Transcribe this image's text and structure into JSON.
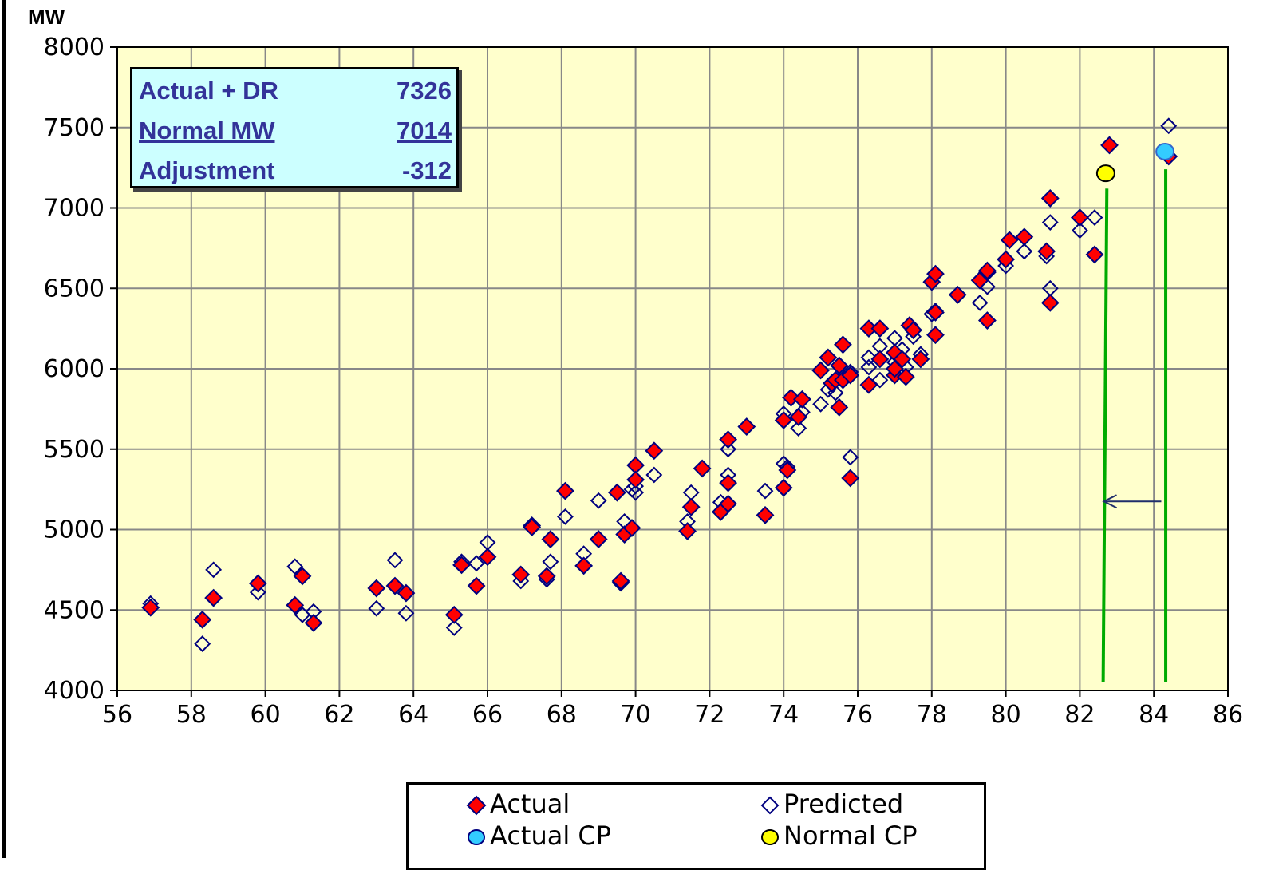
{
  "chart_data": {
    "type": "scatter",
    "ylabel": "MW",
    "xlim": [
      56,
      86
    ],
    "ylim": [
      4000,
      8000
    ],
    "xticks": [
      "56",
      "58",
      "60",
      "62",
      "64",
      "66",
      "68",
      "70",
      "72",
      "74",
      "76",
      "78",
      "80",
      "82",
      "84",
      "86"
    ],
    "yticks": [
      "4000",
      "4500",
      "5000",
      "5500",
      "6000",
      "6500",
      "7000",
      "7500",
      "8000"
    ],
    "grid": true,
    "plot_background": "#ffffcc",
    "legend_position": "bottom-center",
    "series": [
      {
        "name": "Actual",
        "marker": "diamond-filled",
        "color": "#ff0000",
        "points": [
          [
            56.9,
            4515
          ],
          [
            58.3,
            4440
          ],
          [
            58.6,
            4575
          ],
          [
            59.8,
            4665
          ],
          [
            60.8,
            4530
          ],
          [
            61.0,
            4710
          ],
          [
            61.3,
            4420
          ],
          [
            63.0,
            4635
          ],
          [
            63.5,
            4650
          ],
          [
            63.8,
            4605
          ],
          [
            65.1,
            4470
          ],
          [
            65.3,
            4780
          ],
          [
            65.7,
            4650
          ],
          [
            66.0,
            4830
          ],
          [
            66.9,
            4720
          ],
          [
            67.2,
            5025
          ],
          [
            67.2,
            5015
          ],
          [
            67.6,
            4710
          ],
          [
            67.7,
            4940
          ],
          [
            68.1,
            5240
          ],
          [
            68.6,
            4775
          ],
          [
            69.0,
            4940
          ],
          [
            69.5,
            5230
          ],
          [
            69.6,
            4670
          ],
          [
            69.6,
            4680
          ],
          [
            69.7,
            4970
          ],
          [
            69.9,
            5010
          ],
          [
            70.0,
            5400
          ],
          [
            70.0,
            5310
          ],
          [
            70.5,
            5490
          ],
          [
            71.4,
            4990
          ],
          [
            71.5,
            5140
          ],
          [
            71.8,
            5380
          ],
          [
            72.3,
            5110
          ],
          [
            72.5,
            5160
          ],
          [
            72.5,
            5290
          ],
          [
            72.5,
            5560
          ],
          [
            73.0,
            5640
          ],
          [
            73.5,
            5090
          ],
          [
            74.0,
            5680
          ],
          [
            74.0,
            5260
          ],
          [
            74.1,
            5370
          ],
          [
            74.2,
            5820
          ],
          [
            74.4,
            5700
          ],
          [
            74.5,
            5810
          ],
          [
            75.0,
            5990
          ],
          [
            75.2,
            6070
          ],
          [
            75.3,
            5910
          ],
          [
            75.4,
            5930
          ],
          [
            75.5,
            5760
          ],
          [
            75.5,
            6020
          ],
          [
            75.6,
            6150
          ],
          [
            75.6,
            5930
          ],
          [
            75.8,
            5960
          ],
          [
            75.8,
            5320
          ],
          [
            76.3,
            5900
          ],
          [
            76.3,
            6250
          ],
          [
            76.6,
            6060
          ],
          [
            76.6,
            6250
          ],
          [
            77.0,
            5960
          ],
          [
            77.0,
            6000
          ],
          [
            77.0,
            6100
          ],
          [
            77.2,
            6060
          ],
          [
            77.3,
            5950
          ],
          [
            77.4,
            6270
          ],
          [
            77.5,
            6240
          ],
          [
            77.7,
            6060
          ],
          [
            78.0,
            6540
          ],
          [
            78.1,
            6590
          ],
          [
            78.1,
            6350
          ],
          [
            78.1,
            6210
          ],
          [
            78.7,
            6460
          ],
          [
            79.3,
            6550
          ],
          [
            79.5,
            6600
          ],
          [
            79.5,
            6300
          ],
          [
            79.5,
            6610
          ],
          [
            80.0,
            6680
          ],
          [
            80.1,
            6800
          ],
          [
            80.5,
            6820
          ],
          [
            81.1,
            6730
          ],
          [
            81.2,
            6410
          ],
          [
            81.2,
            7060
          ],
          [
            82.0,
            6940
          ],
          [
            82.4,
            6710
          ],
          [
            82.8,
            7390
          ],
          [
            84.4,
            7320
          ]
        ]
      },
      {
        "name": "Predicted",
        "marker": "diamond-open",
        "color": "#000080",
        "points": [
          [
            56.9,
            4540
          ],
          [
            58.3,
            4290
          ],
          [
            58.6,
            4750
          ],
          [
            59.8,
            4610
          ],
          [
            60.8,
            4770
          ],
          [
            61.0,
            4470
          ],
          [
            61.3,
            4490
          ],
          [
            63.0,
            4510
          ],
          [
            63.5,
            4810
          ],
          [
            63.8,
            4480
          ],
          [
            65.1,
            4390
          ],
          [
            65.3,
            4800
          ],
          [
            65.7,
            4790
          ],
          [
            66.0,
            4920
          ],
          [
            66.9,
            4680
          ],
          [
            67.6,
            4690
          ],
          [
            67.7,
            4800
          ],
          [
            68.1,
            5080
          ],
          [
            68.6,
            4850
          ],
          [
            69.0,
            5180
          ],
          [
            69.7,
            5050
          ],
          [
            69.9,
            5250
          ],
          [
            70.0,
            5230
          ],
          [
            70.0,
            5270
          ],
          [
            70.5,
            5340
          ],
          [
            71.4,
            5050
          ],
          [
            71.5,
            5230
          ],
          [
            72.3,
            5170
          ],
          [
            72.5,
            5500
          ],
          [
            72.5,
            5340
          ],
          [
            73.5,
            5240
          ],
          [
            74.0,
            5720
          ],
          [
            74.0,
            5410
          ],
          [
            74.1,
            5390
          ],
          [
            74.4,
            5630
          ],
          [
            74.5,
            5730
          ],
          [
            75.0,
            5780
          ],
          [
            75.2,
            5870
          ],
          [
            75.4,
            5850
          ],
          [
            75.6,
            5950
          ],
          [
            75.8,
            5980
          ],
          [
            75.8,
            5450
          ],
          [
            76.3,
            6010
          ],
          [
            76.3,
            6070
          ],
          [
            76.6,
            5930
          ],
          [
            76.6,
            6140
          ],
          [
            77.0,
            6190
          ],
          [
            77.0,
            6040
          ],
          [
            77.2,
            6120
          ],
          [
            77.3,
            6010
          ],
          [
            77.5,
            6200
          ],
          [
            77.7,
            6090
          ],
          [
            78.0,
            6340
          ],
          [
            78.1,
            6360
          ],
          [
            79.3,
            6410
          ],
          [
            79.5,
            6510
          ],
          [
            80.0,
            6640
          ],
          [
            80.5,
            6730
          ],
          [
            81.1,
            6700
          ],
          [
            81.2,
            6500
          ],
          [
            81.2,
            6910
          ],
          [
            82.0,
            6860
          ],
          [
            82.4,
            6940
          ],
          [
            84.4,
            7510
          ]
        ]
      },
      {
        "name": "Actual CP",
        "marker": "circle",
        "color": "#33ccff",
        "points": [
          [
            84.3,
            7350
          ]
        ]
      },
      {
        "name": "Normal CP",
        "marker": "circle",
        "color": "#ffff00",
        "points": [
          [
            82.7,
            7215
          ]
        ]
      }
    ],
    "annotations": {
      "vertical_lines": [
        {
          "x_top": 82.73,
          "y_top": 7120,
          "x_bottom": 82.63,
          "y_bottom": 4050,
          "color": "#00aa00"
        },
        {
          "x_top": 84.32,
          "y_top": 7240,
          "x_bottom": 84.32,
          "y_bottom": 4050,
          "color": "#00aa00"
        }
      ],
      "arrow": {
        "from": [
          84.2,
          5175
        ],
        "to": [
          82.65,
          5175
        ],
        "color": "#1f2d6b"
      }
    },
    "info_box": {
      "rows": [
        {
          "label": "Actual + DR",
          "value": "7326",
          "underline": false
        },
        {
          "label": "Normal MW",
          "value": "7014",
          "underline": true
        },
        {
          "label": "Adjustment",
          "value": "-312",
          "underline": false
        }
      ]
    }
  }
}
